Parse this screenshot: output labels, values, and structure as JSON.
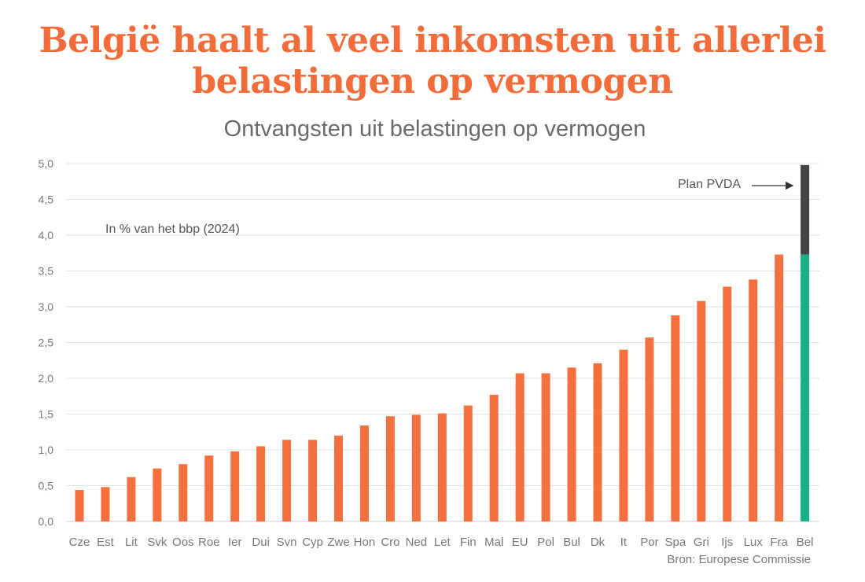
{
  "title_line1": "België haalt al veel inkomsten uit allerlei",
  "title_line2": "belastingen op vermogen",
  "subtitle": "Ontvangsten uit belastingen op vermogen",
  "colors": {
    "bar": "#f4703f",
    "highlight": "#1aaf84",
    "plan": "#474344",
    "grid": "#e2e2e2",
    "title": "#f26b3a"
  },
  "chart_data": {
    "type": "bar",
    "title": "Ontvangsten uit belastingen op vermogen",
    "unit_note": "In % van het bbp (2024)",
    "source": "Bron: Europese Commissie",
    "ylim": [
      0,
      5
    ],
    "yticks": [
      "0,0",
      "0,5",
      "1,0",
      "1,5",
      "2,0",
      "2,5",
      "3,0",
      "3,5",
      "4,0",
      "4,5",
      "5,0"
    ],
    "grid": true,
    "categories": [
      "Cze",
      "Est",
      "Lit",
      "Svk",
      "Oos",
      "Roe",
      "Ier",
      "Dui",
      "Svn",
      "Cyp",
      "Zwe",
      "Hon",
      "Cro",
      "Ned",
      "Let",
      "Fin",
      "Mal",
      "EU",
      "Pol",
      "Bul",
      "Dk",
      "It",
      "Por",
      "Spa",
      "Gri",
      "Ijs",
      "Lux",
      "Fra",
      "Bel"
    ],
    "values": [
      0.44,
      0.48,
      0.62,
      0.74,
      0.8,
      0.92,
      0.98,
      1.05,
      1.14,
      1.14,
      1.2,
      1.34,
      1.47,
      1.49,
      1.51,
      1.62,
      1.77,
      2.07,
      2.07,
      2.15,
      2.21,
      2.4,
      2.57,
      2.88,
      3.08,
      3.28,
      3.38,
      3.73,
      3.73
    ],
    "highlight": "Bel",
    "plan_top": 4.98,
    "annotation": "Plan PVDA"
  }
}
